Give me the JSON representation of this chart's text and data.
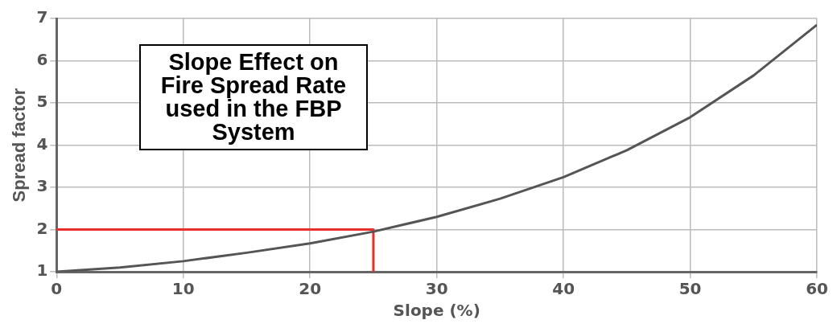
{
  "chart_data": {
    "type": "line",
    "title": "Slope Effect on Fire Spread Rate used in the FBP System",
    "xlabel": "Slope (%)",
    "ylabel": "Spread factor",
    "series": [
      {
        "color": "#555555",
        "x": [
          0,
          5,
          10,
          15,
          20,
          25,
          30,
          35,
          40,
          45,
          50,
          55,
          60
        ],
        "values": [
          1,
          1.1,
          1.25,
          1.45,
          1.67,
          1.95,
          2.3,
          2.73,
          3.24,
          3.88,
          4.66,
          5.65,
          6.85
        ]
      },
      {
        "color": "#e8302a",
        "x": [
          0,
          25,
          25
        ],
        "values": [
          2,
          2,
          1
        ]
      }
    ],
    "xlim": [
      0,
      60
    ],
    "xticks": [
      0,
      10,
      20,
      30,
      40,
      50,
      60
    ],
    "ylim": [
      1,
      7
    ],
    "yticks": [
      1,
      2,
      3,
      4,
      5,
      6,
      7
    ],
    "grid": true,
    "legend": false,
    "marker": "none",
    "line_style": "solid"
  }
}
